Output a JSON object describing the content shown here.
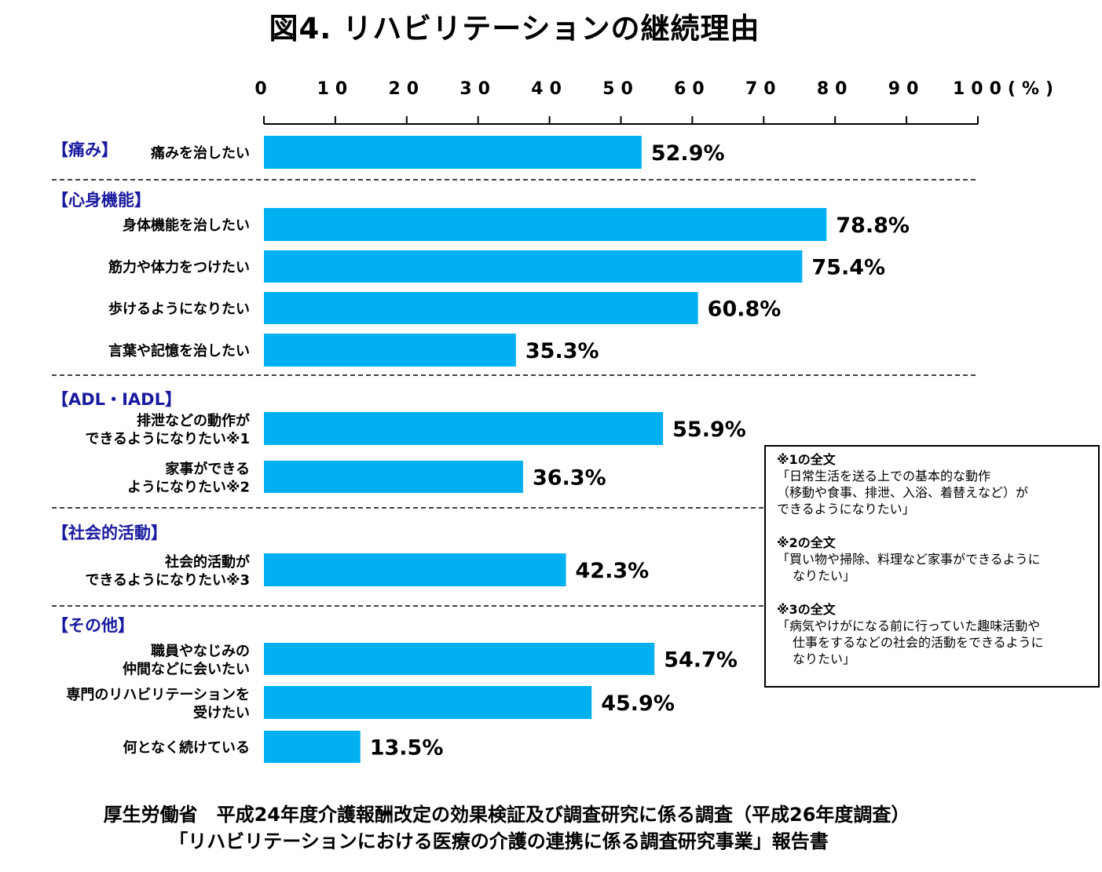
{
  "title": "図4. リハビリテーションの継続理由",
  "chart_data": {
    "type": "bar",
    "orientation": "horizontal",
    "xlim": [
      0,
      100
    ],
    "xticks": [
      "0",
      "10",
      "20",
      "30",
      "40",
      "50",
      "60",
      "70",
      "80",
      "90",
      "100(%)"
    ],
    "groups": [
      {
        "name": "【痛み】",
        "items": [
          {
            "label": [
              "痛みを治したい"
            ],
            "value": 52.9,
            "value_label": "52.9%"
          }
        ]
      },
      {
        "name": "【心身機能】",
        "items": [
          {
            "label": [
              "身体機能を治したい"
            ],
            "value": 78.8,
            "value_label": "78.8%"
          },
          {
            "label": [
              "筋力や体力をつけたい"
            ],
            "value": 75.4,
            "value_label": "75.4%"
          },
          {
            "label": [
              "歩けるようになりたい"
            ],
            "value": 60.8,
            "value_label": "60.8%"
          },
          {
            "label": [
              "言葉や記憶を治したい"
            ],
            "value": 35.3,
            "value_label": "35.3%"
          }
        ]
      },
      {
        "name": "【ADL・IADL】",
        "items": [
          {
            "label": [
              "排泄などの動作が",
              "できるようになりたい※1"
            ],
            "value": 55.9,
            "value_label": "55.9%"
          },
          {
            "label": [
              "家事ができる",
              "ようになりたい※2"
            ],
            "value": 36.3,
            "value_label": "36.3%"
          }
        ]
      },
      {
        "name": "【社会的活動】",
        "items": [
          {
            "label": [
              "社会的活動が",
              "できるようになりたい※3"
            ],
            "value": 42.3,
            "value_label": "42.3%"
          }
        ]
      },
      {
        "name": "【その他】",
        "items": [
          {
            "label": [
              "職員やなじみの",
              "仲間などに会いたい"
            ],
            "value": 54.7,
            "value_label": "54.7%"
          },
          {
            "label": [
              "専門のリハビリテーションを",
              "受けたい"
            ],
            "value": 45.9,
            "value_label": "45.9%"
          },
          {
            "label": [
              "何となく続けている"
            ],
            "value": 13.5,
            "value_label": "13.5%"
          }
        ]
      }
    ],
    "bar_color": "#00b0f0",
    "group_label_color": "#1a1aa0"
  },
  "notes": [
    {
      "head": "※1の全文",
      "lines": [
        "「日常生活を送る上での基本的な動作",
        "（移動や食事、排泄、入浴、着替えなど）が",
        "できるようになりたい」"
      ]
    },
    {
      "head": "※2の全文",
      "lines": [
        "「買い物や掃除、料理など家事ができるように",
        "なりたい」"
      ]
    },
    {
      "head": "※3の全文",
      "lines": [
        "「病気やけがになる前に行っていた趣味活動や",
        "仕事をするなどの社会的活動をできるように",
        "なりたい」"
      ]
    }
  ],
  "source": {
    "line1": "厚生労働省　平成24年度介護報酬改定の効果検証及び調査研究に係る調査（平成26年度調査）",
    "line2": "「リハビリテーションにおける医療の介護の連携に係る調査研究事業」報告書"
  }
}
